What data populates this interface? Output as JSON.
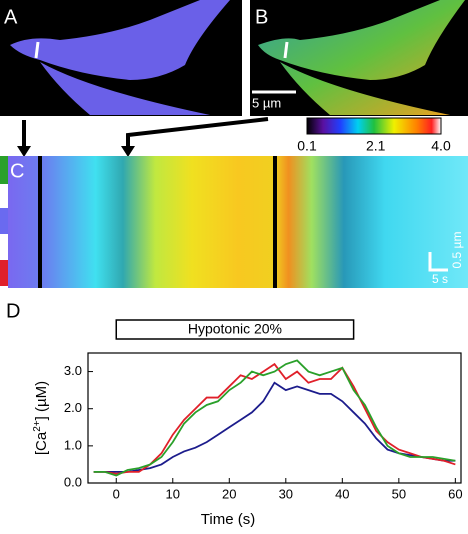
{
  "panel_labels": [
    "A",
    "B",
    "C",
    "D"
  ],
  "scale_bars": {
    "image": "5 µm",
    "space": "0.5 µm",
    "time": "5 s"
  },
  "colorbar": {
    "lim": [
      0.1,
      4.0
    ],
    "ticks": [
      0.1,
      2.1,
      {
        "value": 4.0,
        "label": "4.0"
      }
    ]
  },
  "chart_data": {
    "type": "line",
    "annotation": "Hypotonic 20%",
    "xlabel": "Time (s)",
    "ylabel": [
      "[Ca",
      "2+",
      "]  (µM)"
    ],
    "x": [
      -4,
      -2,
      0,
      2,
      4,
      6,
      8,
      10,
      12,
      14,
      16,
      18,
      20,
      22,
      24,
      26,
      28,
      30,
      32,
      34,
      36,
      38,
      40,
      42,
      44,
      46,
      48,
      50,
      52,
      54,
      56,
      58,
      60
    ],
    "series": [
      {
        "color": "#1c1c8c",
        "values": [
          0.3,
          0.3,
          0.3,
          0.3,
          0.35,
          0.4,
          0.5,
          0.7,
          0.85,
          0.95,
          1.1,
          1.3,
          1.5,
          1.7,
          1.9,
          2.2,
          2.7,
          2.5,
          2.6,
          2.5,
          2.4,
          2.4,
          2.2,
          1.9,
          1.6,
          1.2,
          0.9,
          0.8,
          0.75,
          0.7,
          0.65,
          0.6,
          0.6
        ]
      },
      {
        "color": "#e0202a",
        "values": [
          0.3,
          0.3,
          0.25,
          0.3,
          0.3,
          0.5,
          0.8,
          1.3,
          1.7,
          2.0,
          2.3,
          2.3,
          2.6,
          2.9,
          2.8,
          3.0,
          3.2,
          2.8,
          3.0,
          2.7,
          2.8,
          2.8,
          3.1,
          2.6,
          2.0,
          1.4,
          1.1,
          0.9,
          0.8,
          0.7,
          0.65,
          0.6,
          0.5
        ]
      },
      {
        "color": "#2aa02a",
        "values": [
          0.3,
          0.3,
          0.2,
          0.35,
          0.4,
          0.5,
          0.7,
          1.1,
          1.6,
          1.9,
          2.1,
          2.2,
          2.5,
          2.7,
          3.0,
          2.9,
          3.0,
          3.2,
          3.3,
          3.0,
          2.9,
          3.0,
          3.1,
          2.5,
          2.1,
          1.5,
          1.0,
          0.8,
          0.7,
          0.7,
          0.7,
          0.65,
          0.6
        ]
      }
    ],
    "xlim": [
      -5,
      61
    ],
    "xticks": [
      0,
      10,
      20,
      30,
      40,
      50,
      60
    ],
    "ylim": [
      0,
      3.5
    ],
    "yticks": [
      {
        "value": 0,
        "label": "0.0"
      },
      {
        "value": 1,
        "label": "1.0"
      },
      {
        "value": 2,
        "label": "2.0"
      },
      {
        "value": 3,
        "label": "3.0"
      }
    ],
    "annotation_x": [
      0,
      42
    ]
  }
}
